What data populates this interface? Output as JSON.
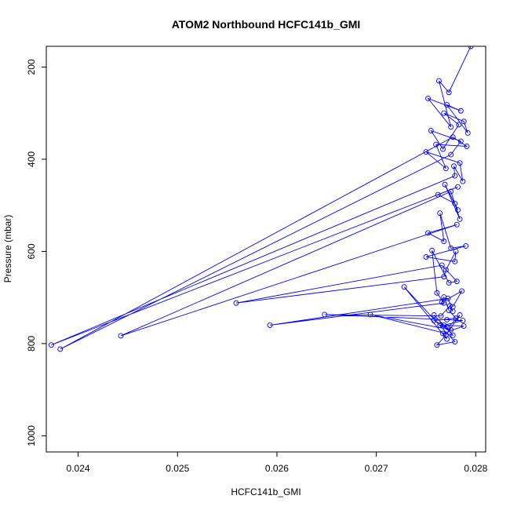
{
  "chart_data": {
    "type": "line",
    "title": "ATOM2 Northbound HCFC141b_GMI",
    "xlabel": "HCFC141b_GMI",
    "ylabel": "Pressure (mbar)",
    "xlim": [
      0.02368,
      0.0281
    ],
    "ylim": [
      1035,
      155
    ],
    "y_reversed": true,
    "x_ticks": [
      0.024,
      0.025,
      0.026,
      0.027,
      0.028
    ],
    "x_tick_labels": [
      "0.024",
      "0.025",
      "0.026",
      "0.027",
      "0.028"
    ],
    "y_ticks": [
      200,
      400,
      600,
      800,
      1000
    ],
    "y_tick_labels": [
      "200",
      "400",
      "600",
      "800",
      "1000"
    ],
    "grid": false,
    "series": [
      {
        "color": "#0000ff",
        "marker": "open-circle",
        "x": [
          0.02795,
          0.02773,
          0.02763,
          0.02775,
          0.02752,
          0.02785,
          0.02771,
          0.02792,
          0.02788,
          0.02768,
          0.02783,
          0.02767,
          0.02755,
          0.02785,
          0.02775,
          0.02382,
          0.02777,
          0.02791,
          0.0276,
          0.0277,
          0.0275,
          0.02784,
          0.02787,
          0.02778,
          0.02779,
          0.02373,
          0.02782,
          0.02762,
          0.02779,
          0.02782,
          0.02769,
          0.02784,
          0.02775,
          0.02443,
          0.02781,
          0.02752,
          0.02768,
          0.02764,
          0.02775,
          0.0279,
          0.0275,
          0.02779,
          0.0278,
          0.0277,
          0.02768,
          0.02559,
          0.02766,
          0.02781,
          0.02773,
          0.02756,
          0.02761,
          0.02768,
          0.02593,
          0.02772,
          0.02777,
          0.02774,
          0.02765,
          0.02648,
          0.02771,
          0.02787,
          0.02768,
          0.02758,
          0.02777,
          0.02694,
          0.02775,
          0.02764,
          0.02788,
          0.02767,
          0.02771,
          0.02728,
          0.02779,
          0.02761,
          0.0277,
          0.02784,
          0.02772,
          0.02758,
          0.0278,
          0.02773,
          0.02768,
          0.02766,
          0.02786,
          0.02777
        ],
        "y": [
          155,
          255,
          230,
          330,
          268,
          295,
          282,
          343,
          318,
          300,
          325,
          378,
          338,
          361,
          390,
          812,
          352,
          372,
          368,
          420,
          384,
          408,
          448,
          415,
          436,
          803,
          460,
          477,
          496,
          510,
          455,
          530,
          470,
          783,
          542,
          560,
          578,
          517,
          593,
          588,
          612,
          622,
          600,
          640,
          655,
          712,
          630,
          665,
          668,
          598,
          690,
          712,
          760,
          702,
          730,
          718,
          740,
          737,
          748,
          750,
          760,
          738,
          782,
          737,
          770,
          760,
          762,
          778,
          790,
          677,
          796,
          803,
          782,
          738,
          765,
          750,
          745,
          728,
          699,
          710,
          686,
          720
        ]
      }
    ]
  }
}
